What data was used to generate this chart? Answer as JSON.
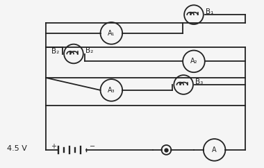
{
  "bg_color": "#f5f5f5",
  "line_color": "#222222",
  "text_color": "#222222",
  "voltage_label": "4.5 V",
  "ammeter_label": "A",
  "bulb_labels": [
    "B₁",
    "B₂",
    "B₃"
  ],
  "ammeter_labels": [
    "A₁",
    "A₂",
    "A₃"
  ],
  "fig_width": 3.8,
  "fig_height": 2.42,
  "dpi": 100
}
